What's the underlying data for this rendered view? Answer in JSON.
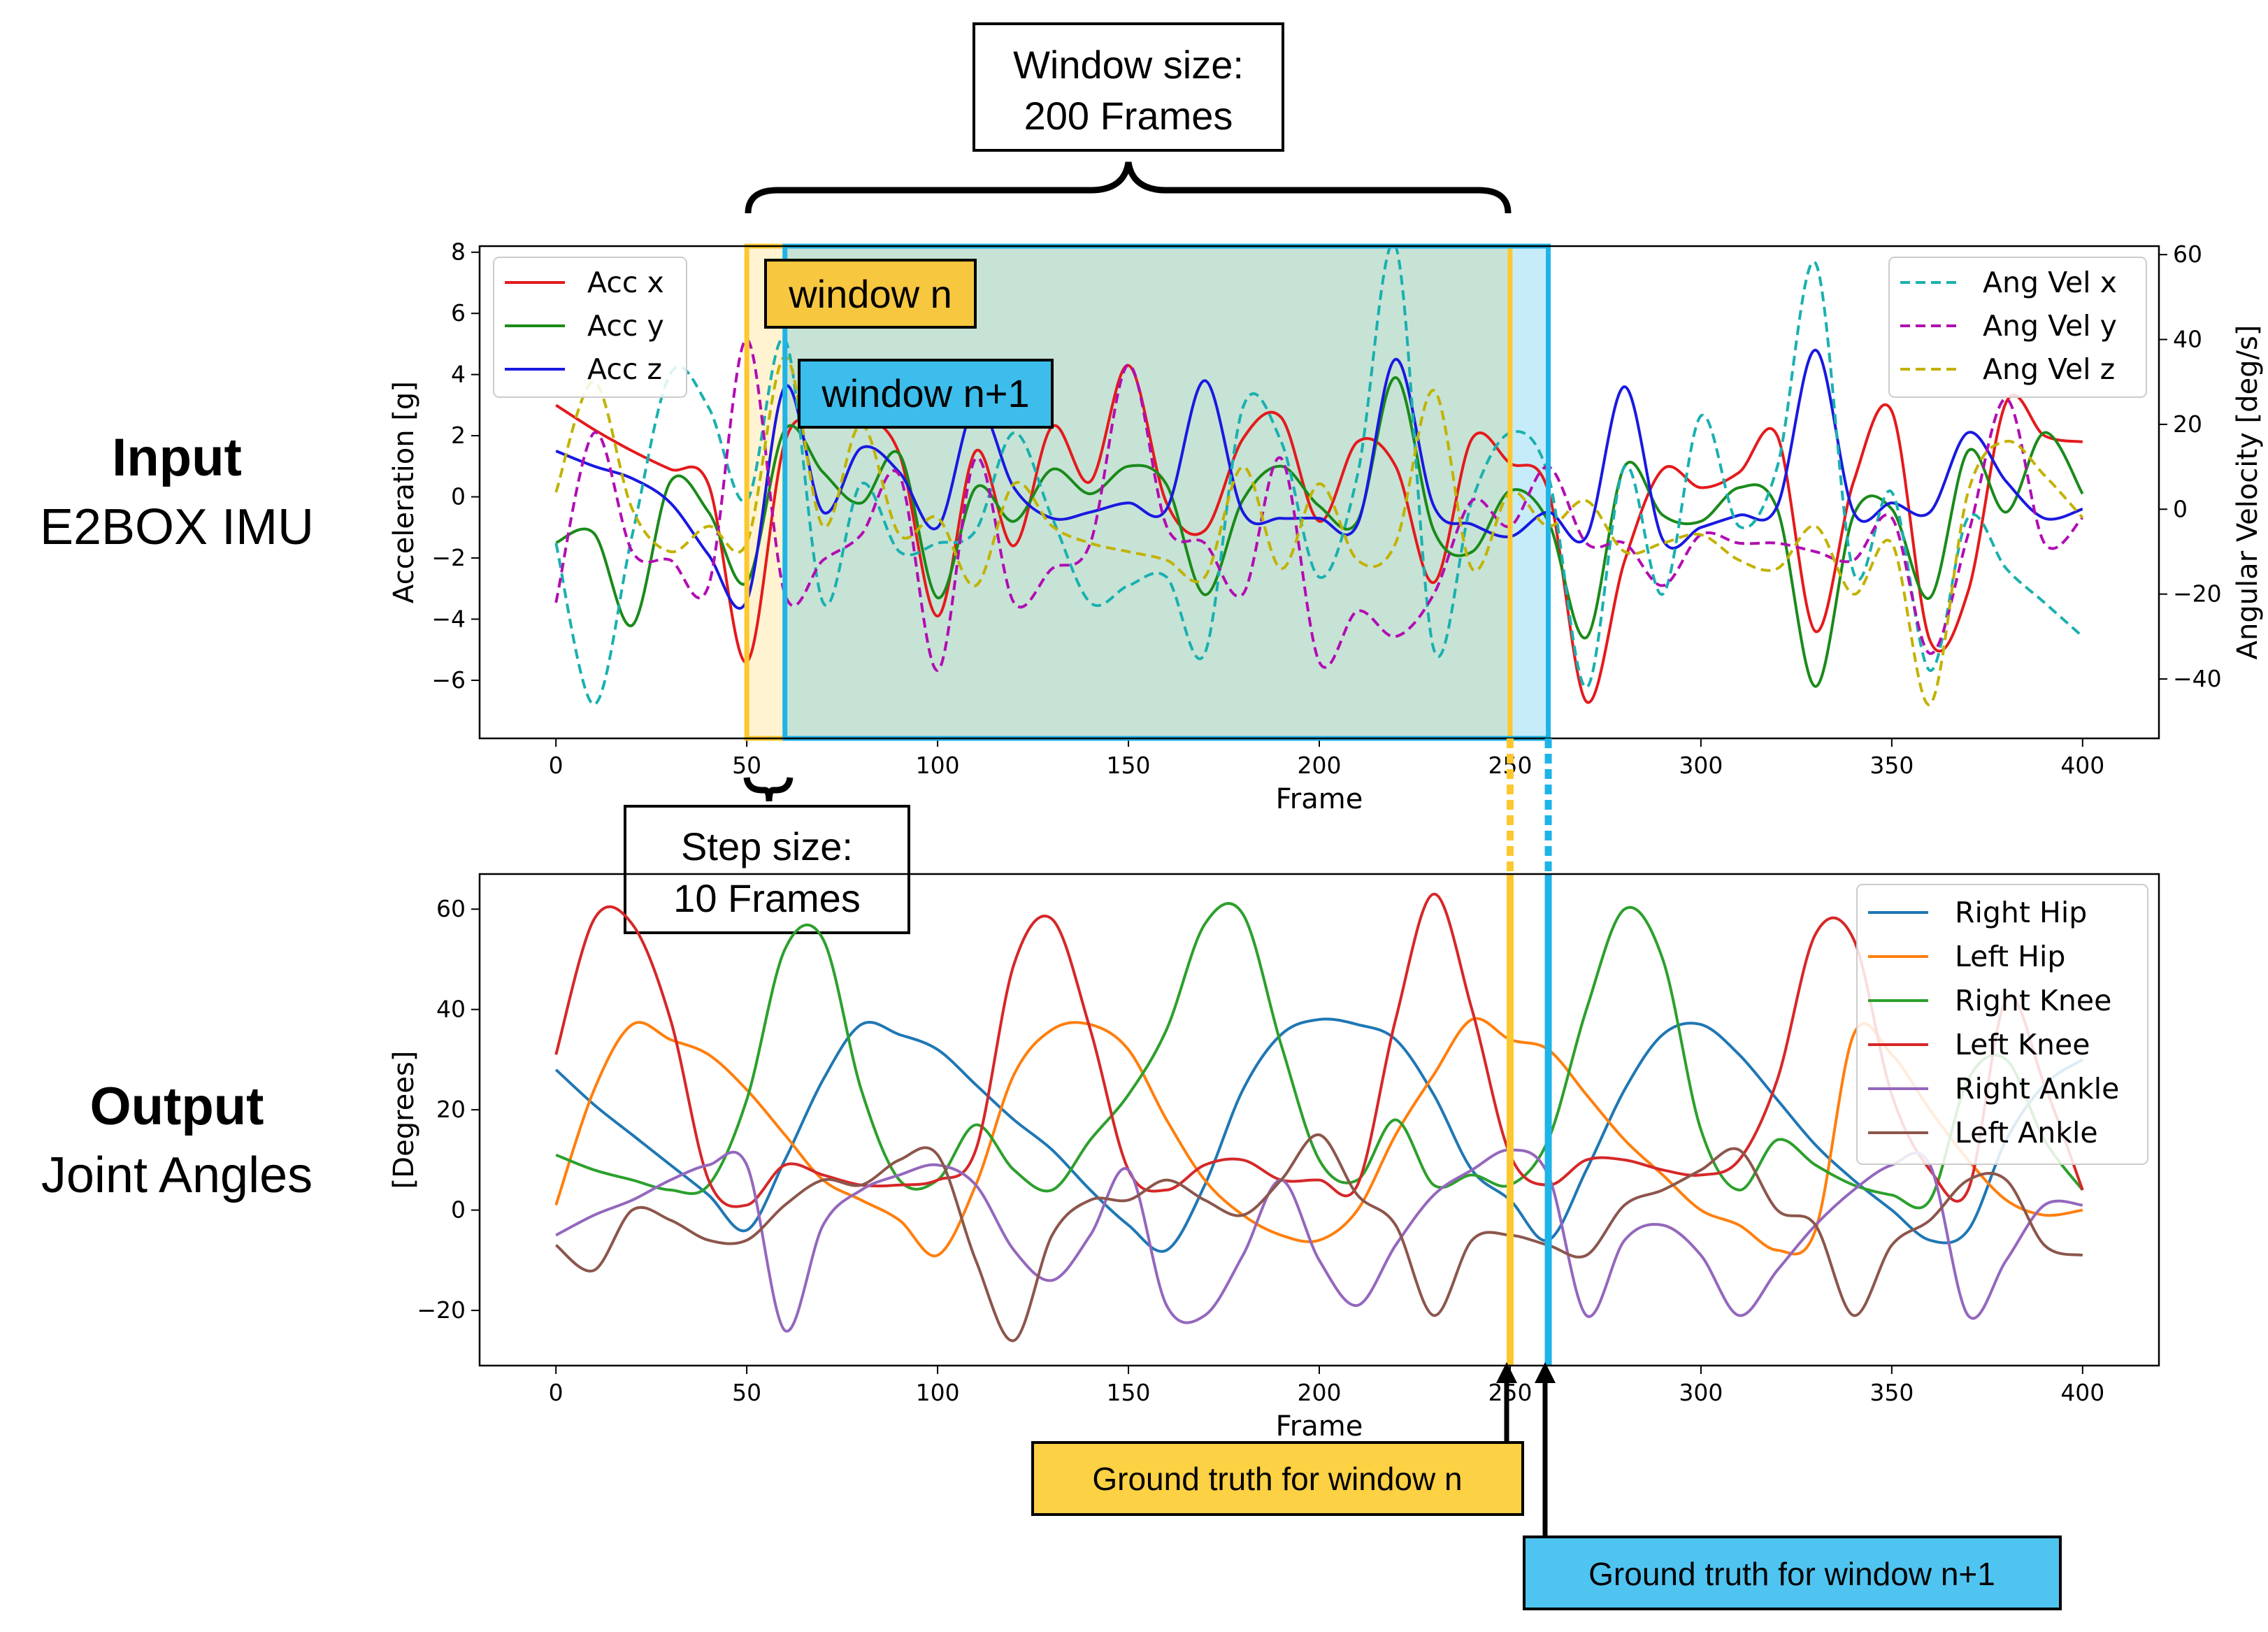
{
  "sides": {
    "input_title": "Input",
    "input_sub": "E2BOX IMU",
    "output_title": "Output",
    "output_sub": "Joint Angles"
  },
  "annotations": {
    "window_size_line1": "Window size:",
    "window_size_line2": "200 Frames",
    "step_size_line1": "Step size:",
    "step_size_line2": "10 Frames",
    "window_n": "window n",
    "window_n1": "window n+1",
    "gt_n": "Ground truth for window n",
    "gt_n1": "Ground truth for window n+1"
  },
  "colors": {
    "window_n": "#FDC82F",
    "window_n1": "#1EB4E8",
    "gt_n_box": "#FDD144",
    "gt_n1_box": "#4FC4F0"
  },
  "chart_data": [
    {
      "type": "line",
      "xlabel": "Frame",
      "ylabel": "Acceleration [g]",
      "y2label": "Angular Velocity [deg/s]",
      "xlim": [
        -20,
        420
      ],
      "ylim": [
        -7.9,
        8.2
      ],
      "y2lim": [
        -54,
        62
      ],
      "xticks": [
        0,
        50,
        100,
        150,
        200,
        250,
        300,
        350,
        400
      ],
      "yticks": [
        -6,
        -4,
        -2,
        0,
        2,
        4,
        6,
        8
      ],
      "y2ticks": [
        -40,
        -20,
        0,
        20,
        40,
        60
      ],
      "legend_left": "upper-left",
      "legend_right": "upper-right",
      "x": [
        0,
        10,
        20,
        30,
        40,
        50,
        60,
        70,
        80,
        90,
        100,
        110,
        120,
        130,
        140,
        150,
        160,
        170,
        180,
        190,
        200,
        210,
        220,
        230,
        240,
        250,
        260,
        270,
        280,
        290,
        300,
        310,
        320,
        330,
        340,
        350,
        360,
        370,
        380,
        390,
        400
      ],
      "series": [
        {
          "name": "Acc x",
          "axis": "left",
          "color": "#E41A1C",
          "dash": "solid",
          "values": [
            3.0,
            2.2,
            1.5,
            0.9,
            0.4,
            -5.4,
            1.8,
            2.4,
            2.6,
            1.4,
            -3.9,
            1.5,
            -1.6,
            2.3,
            0.5,
            4.3,
            -0.2,
            -1.1,
            1.9,
            2.6,
            -0.8,
            1.8,
            1.0,
            -2.8,
            1.9,
            1.1,
            0.2,
            -6.7,
            -2.1,
            0.9,
            0.3,
            0.8,
            2.0,
            -4.4,
            0.5,
            2.8,
            -4.7,
            -3.1,
            3.1,
            2.0,
            1.8
          ]
        },
        {
          "name": "Acc y",
          "axis": "left",
          "color": "#1A8A1A",
          "dash": "solid",
          "values": [
            -1.5,
            -1.2,
            -4.2,
            0.5,
            -0.5,
            -2.8,
            2.2,
            0.8,
            -0.2,
            1.4,
            -3.3,
            0.3,
            -0.8,
            0.9,
            0.1,
            1.0,
            0.4,
            -3.2,
            -0.1,
            1.0,
            -0.3,
            -0.8,
            3.9,
            -1.1,
            -1.8,
            0.2,
            -0.8,
            -4.6,
            1.0,
            -0.6,
            -0.8,
            0.3,
            -0.4,
            -6.2,
            -0.6,
            -0.4,
            -3.3,
            1.5,
            -0.5,
            2.1,
            0.1
          ]
        },
        {
          "name": "Acc z",
          "axis": "left",
          "color": "#1919E0",
          "dash": "solid",
          "values": [
            1.5,
            1.0,
            0.6,
            -0.2,
            -1.9,
            -3.4,
            3.6,
            -0.5,
            1.6,
            0.8,
            -1.0,
            3.0,
            0.3,
            -0.7,
            -0.5,
            -0.2,
            -0.4,
            3.8,
            -0.5,
            -0.7,
            -0.7,
            -0.9,
            4.5,
            -0.3,
            -0.9,
            -1.3,
            -0.5,
            -1.3,
            3.6,
            -1.4,
            -1.0,
            -0.6,
            -0.3,
            4.8,
            -0.5,
            -0.2,
            -0.5,
            2.1,
            0.5,
            -0.7,
            -0.4
          ]
        },
        {
          "name": "Ang Vel x",
          "axis": "right",
          "color": "#1AB0B0",
          "dash": "dashed",
          "values": [
            -8,
            -46,
            -6,
            32,
            24,
            2,
            40,
            -22,
            6,
            -10,
            -8,
            -5,
            18,
            -2,
            -22,
            -18,
            -16,
            -34,
            24,
            16,
            -16,
            8,
            62,
            -33,
            2,
            18,
            8,
            -42,
            10,
            -20,
            22,
            -4,
            10,
            58,
            -15,
            4,
            -38,
            -2,
            -14,
            -22,
            -30
          ]
        },
        {
          "name": "Ang Vel y",
          "axis": "right",
          "color": "#B20DB2",
          "dash": "dashed",
          "values": [
            -22,
            18,
            -10,
            -12,
            -18,
            40,
            -20,
            -12,
            -6,
            8,
            -38,
            12,
            -22,
            -14,
            -8,
            34,
            -4,
            -8,
            -20,
            12,
            -36,
            -24,
            -30,
            -20,
            2,
            -4,
            10,
            -8,
            -8,
            -18,
            -6,
            -8,
            -8,
            -10,
            -12,
            -2,
            -34,
            -6,
            26,
            -8,
            -2
          ]
        },
        {
          "name": "Ang Vel z",
          "axis": "right",
          "color": "#C2B200",
          "dash": "dashed",
          "values": [
            4,
            30,
            0,
            -10,
            -4,
            -8,
            36,
            -4,
            20,
            -6,
            -2,
            -18,
            6,
            -4,
            -8,
            -10,
            -12,
            -16,
            10,
            -14,
            6,
            -12,
            -8,
            28,
            -14,
            4,
            -4,
            2,
            -10,
            -8,
            -6,
            -12,
            -14,
            -4,
            -20,
            -8,
            -46,
            4,
            16,
            8,
            -2
          ]
        }
      ]
    },
    {
      "type": "line",
      "xlabel": "Frame",
      "ylabel": "[Degrees]",
      "xlim": [
        -20,
        420
      ],
      "ylim": [
        -31,
        67
      ],
      "xticks": [
        0,
        50,
        100,
        150,
        200,
        250,
        300,
        350,
        400
      ],
      "yticks": [
        -20,
        0,
        20,
        40,
        60
      ],
      "legend": "upper-right",
      "x": [
        0,
        10,
        20,
        30,
        40,
        50,
        60,
        70,
        80,
        90,
        100,
        110,
        120,
        130,
        140,
        150,
        160,
        170,
        180,
        190,
        200,
        210,
        220,
        230,
        240,
        250,
        260,
        270,
        280,
        290,
        300,
        310,
        320,
        330,
        340,
        350,
        360,
        370,
        380,
        390,
        400
      ],
      "series": [
        {
          "name": "Right Hip",
          "color": "#1F77B4",
          "values": [
            28,
            21,
            15,
            9,
            3,
            -4,
            10,
            26,
            37,
            35,
            32,
            25,
            18,
            12,
            4,
            -3,
            -8,
            5,
            24,
            35,
            38,
            37,
            34,
            23,
            8,
            2,
            -6,
            8,
            24,
            35,
            37,
            31,
            22,
            13,
            6,
            0,
            -6,
            -4,
            14,
            25,
            30
          ]
        },
        {
          "name": "Left Hip",
          "color": "#FF7F0E",
          "values": [
            1,
            24,
            37,
            34,
            31,
            24,
            15,
            6,
            2,
            -2,
            -9,
            5,
            27,
            36,
            37,
            32,
            18,
            6,
            -1,
            -5,
            -6,
            0,
            15,
            27,
            38,
            34,
            32,
            23,
            14,
            7,
            0,
            -3,
            -8,
            -4,
            35,
            31,
            20,
            10,
            2,
            -1,
            0
          ]
        },
        {
          "name": "Right Knee",
          "color": "#2CA02C",
          "values": [
            11,
            8,
            6,
            4,
            5,
            22,
            52,
            54,
            24,
            6,
            6,
            17,
            8,
            4,
            14,
            23,
            36,
            57,
            59,
            33,
            10,
            6,
            18,
            5,
            7,
            5,
            14,
            40,
            60,
            50,
            16,
            4,
            14,
            9,
            5,
            3,
            2,
            26,
            30,
            14,
            4
          ]
        },
        {
          "name": "Left Knee",
          "color": "#D62728",
          "values": [
            31,
            58,
            57,
            38,
            6,
            1,
            9,
            7,
            5,
            5,
            6,
            12,
            49,
            58,
            36,
            8,
            4,
            9,
            10,
            6,
            6,
            5,
            38,
            63,
            40,
            11,
            5,
            10,
            10,
            8,
            7,
            10,
            26,
            55,
            54,
            23,
            8,
            4,
            42,
            25,
            4
          ]
        },
        {
          "name": "Right Ankle",
          "color": "#9467BD",
          "values": [
            -5,
            -1,
            2,
            6,
            9,
            9,
            -24,
            -3,
            4,
            7,
            9,
            5,
            -8,
            -14,
            -5,
            8,
            -19,
            -21,
            -9,
            6,
            -10,
            -19,
            -7,
            3,
            8,
            12,
            7,
            -21,
            -6,
            -3,
            -9,
            -21,
            -12,
            -3,
            4,
            9,
            9,
            -21,
            -10,
            1,
            1
          ]
        },
        {
          "name": "Left Ankle",
          "color": "#8C564B",
          "values": [
            -7,
            -12,
            0,
            -2,
            -6,
            -6,
            1,
            6,
            5,
            10,
            11,
            -10,
            -26,
            -5,
            2,
            2,
            6,
            2,
            -1,
            6,
            15,
            3,
            -3,
            -21,
            -6,
            -5,
            -7,
            -9,
            1,
            4,
            8,
            12,
            0,
            -3,
            -21,
            -7,
            -2,
            6,
            6,
            -7,
            -9
          ]
        }
      ]
    }
  ]
}
